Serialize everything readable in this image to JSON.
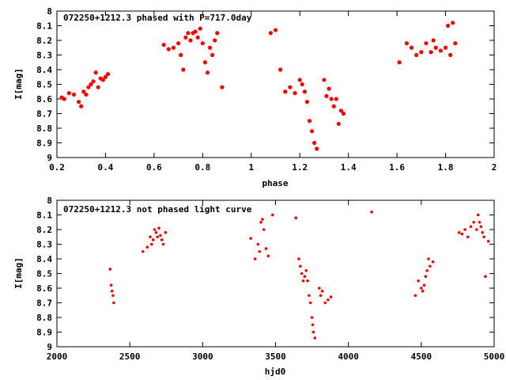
{
  "chart_data": [
    {
      "type": "scatter",
      "title": "072250+1212.3 phased with P=717.0day",
      "xlabel": "phase",
      "ylabel": "I[mag]",
      "xlim": [
        0.2,
        2.0
      ],
      "ylim": [
        8.0,
        9.0
      ],
      "y_inverted": true,
      "grid": false,
      "marker_color": "#ff0000",
      "x_ticks": [
        "0.2",
        "0.4",
        "0.6",
        "0.8",
        "1",
        "1.2",
        "1.4",
        "1.6",
        "1.8",
        "2"
      ],
      "y_ticks": [
        "8",
        "8.1",
        "8.2",
        "8.3",
        "8.4",
        "8.5",
        "8.6",
        "8.7",
        "8.8",
        "8.9",
        "9"
      ],
      "series": [
        {
          "x": [
            0.22,
            0.23,
            0.25,
            0.27,
            0.29,
            0.3,
            0.31,
            0.32,
            0.33,
            0.34,
            0.35,
            0.36,
            0.37,
            0.38,
            0.39,
            0.4,
            0.41,
            0.64,
            0.66,
            0.68,
            0.7,
            0.71,
            0.72,
            0.73,
            0.74,
            0.75,
            0.76,
            0.77,
            0.78,
            0.79,
            0.8,
            0.81,
            0.82,
            0.83,
            0.84,
            0.85,
            0.86,
            0.88,
            1.08,
            1.1,
            1.12,
            1.14,
            1.16,
            1.18,
            1.2,
            1.21,
            1.22,
            1.23,
            1.24,
            1.25,
            1.26,
            1.27,
            1.3,
            1.31,
            1.32,
            1.33,
            1.34,
            1.35,
            1.36,
            1.37,
            1.38,
            1.61,
            1.64,
            1.66,
            1.68,
            1.7,
            1.72,
            1.74,
            1.75,
            1.76,
            1.78,
            1.8,
            1.81,
            1.82,
            1.83,
            1.84
          ],
          "y": [
            8.59,
            8.6,
            8.56,
            8.57,
            8.62,
            8.65,
            8.55,
            8.57,
            8.52,
            8.5,
            8.48,
            8.42,
            8.52,
            8.46,
            8.47,
            8.45,
            8.43,
            8.23,
            8.26,
            8.25,
            8.22,
            8.3,
            8.4,
            8.18,
            8.15,
            8.2,
            8.15,
            8.14,
            8.18,
            8.12,
            8.22,
            8.35,
            8.42,
            8.25,
            8.3,
            8.2,
            8.15,
            8.52,
            8.15,
            8.13,
            8.4,
            8.55,
            8.52,
            8.56,
            8.47,
            8.5,
            8.55,
            8.62,
            8.75,
            8.82,
            8.9,
            8.94,
            8.47,
            8.58,
            8.53,
            8.6,
            8.65,
            8.6,
            8.77,
            8.68,
            8.7,
            8.35,
            8.22,
            8.25,
            8.3,
            8.28,
            8.22,
            8.28,
            8.2,
            8.25,
            8.27,
            8.25,
            8.1,
            8.3,
            8.08,
            8.22
          ]
        }
      ]
    },
    {
      "type": "scatter",
      "title": "072250+1212.3 not phased light curve",
      "xlabel": "hjd0",
      "ylabel": "I[mag]",
      "xlim": [
        2000,
        5000
      ],
      "ylim": [
        8.0,
        9.0
      ],
      "y_inverted": true,
      "grid": false,
      "marker_color": "#ff0000",
      "x_ticks": [
        "2000",
        "2500",
        "3000",
        "3500",
        "4000",
        "4500",
        "5000"
      ],
      "y_ticks": [
        "8",
        "8.1",
        "8.2",
        "8.3",
        "8.4",
        "8.5",
        "8.6",
        "8.7",
        "8.8",
        "8.9",
        "9"
      ],
      "series": [
        {
          "x": [
            2365,
            2372,
            2378,
            2385,
            2390,
            2590,
            2620,
            2640,
            2650,
            2660,
            2670,
            2680,
            2690,
            2700,
            2710,
            2720,
            2730,
            2745,
            3330,
            3360,
            3380,
            3390,
            3400,
            3410,
            3420,
            3435,
            3450,
            3480,
            3640,
            3660,
            3670,
            3680,
            3690,
            3700,
            3710,
            3720,
            3730,
            3740,
            3750,
            3755,
            3760,
            3770,
            3800,
            3810,
            3820,
            3840,
            3860,
            3880,
            4160,
            4460,
            4480,
            4500,
            4510,
            4520,
            4530,
            4540,
            4550,
            4560,
            4580,
            4760,
            4780,
            4800,
            4820,
            4840,
            4860,
            4880,
            4890,
            4900,
            4910,
            4920,
            4930,
            4940,
            4960
          ],
          "y": [
            8.47,
            8.58,
            8.62,
            8.65,
            8.7,
            8.35,
            8.32,
            8.25,
            8.3,
            8.27,
            8.2,
            8.22,
            8.25,
            8.19,
            8.24,
            8.27,
            8.3,
            8.22,
            8.26,
            8.4,
            8.3,
            8.35,
            8.15,
            8.13,
            8.2,
            8.33,
            8.38,
            8.1,
            8.12,
            8.4,
            8.45,
            8.5,
            8.55,
            8.52,
            8.48,
            8.55,
            8.65,
            8.7,
            8.8,
            8.85,
            8.9,
            8.94,
            8.6,
            8.65,
            8.62,
            8.7,
            8.68,
            8.66,
            8.08,
            8.65,
            8.55,
            8.6,
            8.62,
            8.58,
            8.52,
            8.48,
            8.4,
            8.45,
            8.42,
            8.22,
            8.23,
            8.2,
            8.25,
            8.18,
            8.15,
            8.2,
            8.1,
            8.15,
            8.18,
            8.22,
            8.25,
            8.52,
            8.28
          ]
        }
      ]
    }
  ]
}
